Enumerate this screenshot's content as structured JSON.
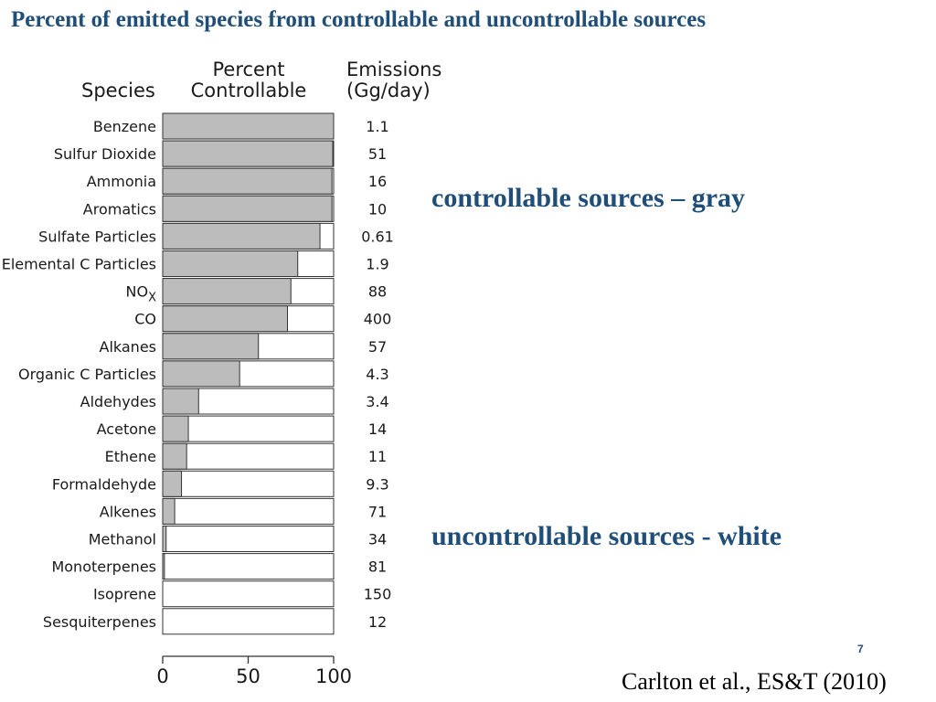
{
  "slide": {
    "title": "Percent of emitted species from controllable and uncontrollable sources",
    "note_controllable": "controllable sources – gray",
    "note_uncontrollable": "uncontrollable sources - white",
    "page_number": "7",
    "citation": "Carlton et al., ES&T (2010)"
  },
  "chart_data": {
    "type": "bar",
    "orientation": "horizontal",
    "headers": {
      "species": "Species",
      "percent_line1": "Percent",
      "percent_line2": "Controllable",
      "emissions_line1": "Emissions",
      "emissions_line2": "(Gg/day)"
    },
    "categories": [
      "Benzene",
      "Sulfur Dioxide",
      "Ammonia",
      "Aromatics",
      "Sulfate Particles",
      "Elemental C Particles",
      "NO",
      "CO",
      "Alkanes",
      "Organic C Particles",
      "Aldehydes",
      "Acetone",
      "Ethene",
      "Formaldehyde",
      "Alkenes",
      "Methanol",
      "Monoterpenes",
      "Isoprene",
      "Sesquiterpenes"
    ],
    "category_subscripts": {
      "NO": "X"
    },
    "percent_controllable": [
      100,
      99.5,
      99,
      99,
      92,
      79,
      75,
      73,
      56,
      45,
      21,
      15,
      14,
      11,
      7,
      2,
      1,
      0,
      0
    ],
    "emissions_labels": [
      "1.1",
      "51",
      "16",
      "10",
      "0.61",
      "1.9",
      "88",
      "400",
      "57",
      "4.3",
      "3.4",
      "14",
      "11",
      "9.3",
      "71",
      "34",
      "81",
      "150",
      "12"
    ],
    "x_ticks": [
      "0",
      "50",
      "100"
    ],
    "xlim": [
      0,
      100
    ],
    "colors": {
      "controllable": "#bcbcbc",
      "uncontrollable": "#ffffff",
      "outline": "#333333"
    }
  }
}
